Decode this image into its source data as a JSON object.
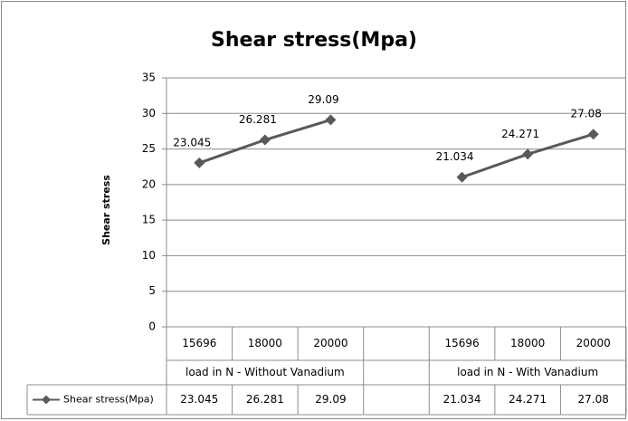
{
  "chart_data": {
    "type": "line",
    "title": "Shear stress(Mpa)",
    "y_label": "Shear stress",
    "categories": [
      "15696",
      "18000",
      "20000",
      null,
      "15696",
      "18000",
      "20000"
    ],
    "groups": [
      "load in N - Without Vanadium",
      "load in N - With Vanadium"
    ],
    "series": [
      {
        "name": "Shear stress(Mpa)",
        "color": "#595959",
        "values": [
          23.045,
          26.281,
          29.09,
          null,
          21.034,
          24.271,
          27.08
        ]
      }
    ],
    "ylim": [
      0,
      35
    ],
    "yticks": [
      0,
      5,
      10,
      15,
      20,
      25,
      30,
      35
    ],
    "grid": true,
    "data_table": true
  }
}
